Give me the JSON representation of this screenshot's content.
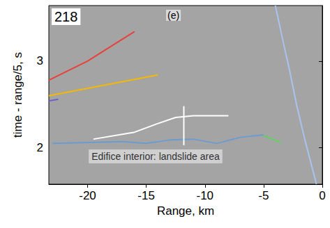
{
  "chart_data": {
    "type": "line",
    "panel_label": "218",
    "subtitle": "(e)",
    "x_label": "Range, km",
    "y_label": "time - range/5, s",
    "xlim": [
      -23.3,
      0
    ],
    "xticks": [
      -20,
      -15,
      -10,
      -5,
      0
    ],
    "ylim": [
      1.58,
      3.64
    ],
    "yticks": [
      2,
      3
    ],
    "grid": false,
    "marker": "none",
    "series": [
      {
        "color": "#e8413c",
        "line_style": "solid",
        "values": [
          [
            -23.3,
            2.78
          ],
          [
            -20,
            3.0
          ],
          [
            -16,
            3.34
          ]
        ]
      },
      {
        "color": "#f5b800",
        "line_style": "solid",
        "values": [
          [
            -23.3,
            2.6
          ],
          [
            -14,
            2.84
          ]
        ]
      },
      {
        "color": "#6b62c8",
        "line_style": "solid",
        "values": [
          [
            -23.3,
            2.54
          ],
          [
            -22.5,
            2.56
          ]
        ]
      },
      {
        "color": "#ffffff",
        "line_style": "solid",
        "values": [
          [
            -19.5,
            2.1
          ],
          [
            -16,
            2.18
          ],
          [
            -14,
            2.28
          ],
          [
            -12.5,
            2.35
          ],
          [
            -11,
            2.37
          ],
          [
            -8,
            2.37
          ]
        ]
      },
      {
        "color": "#6b9bd1",
        "line_style": "solid",
        "values": [
          [
            -23,
            2.05
          ],
          [
            -20,
            2.06
          ],
          [
            -17,
            2.07
          ],
          [
            -15,
            2.05
          ],
          [
            -13,
            2.09
          ],
          [
            -11,
            2.1
          ],
          [
            -9,
            2.05
          ],
          [
            -7,
            2.12
          ],
          [
            -5,
            2.15
          ]
        ]
      },
      {
        "color": "#5fd35f",
        "line_style": "solid",
        "values": [
          [
            -5,
            2.14
          ],
          [
            -3.5,
            2.06
          ]
        ]
      },
      {
        "color": "#a8c4ee",
        "line_style": "solid",
        "values": [
          [
            -4.0,
            3.64
          ],
          [
            -3.3,
            3.2
          ],
          [
            -2.8,
            2.9
          ],
          [
            -2.2,
            2.5
          ],
          [
            -1.5,
            2.1
          ],
          [
            -0.5,
            1.58
          ]
        ]
      }
    ],
    "annotations": [
      {
        "text": "Edifice interior: landslide area",
        "x": -20.2,
        "y": 1.9,
        "arrow": [
          [
            -11.8,
            2.03
          ],
          [
            -11.8,
            2.48
          ]
        ]
      }
    ]
  }
}
